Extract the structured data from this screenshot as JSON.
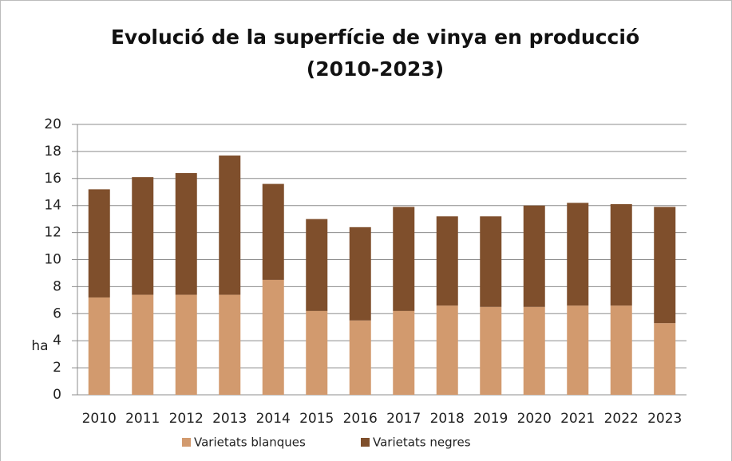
{
  "chart_data": {
    "type": "stacked_bar",
    "title": "Evolució de la superfície de vinya en producció",
    "subtitle": "(2010-2023)",
    "y_label": "ha",
    "categories": [
      "2010",
      "2011",
      "2012",
      "2013",
      "2014",
      "2015",
      "2016",
      "2017",
      "2018",
      "2019",
      "2020",
      "2021",
      "2022",
      "2023"
    ],
    "series": [
      {
        "name": "Varietats blanques",
        "color": "#d29a6e",
        "values": [
          7.2,
          7.4,
          7.4,
          7.4,
          8.5,
          6.2,
          5.5,
          6.2,
          6.6,
          6.5,
          6.5,
          6.6,
          6.6,
          5.3
        ]
      },
      {
        "name": "Varietats negres",
        "color": "#7f4f2c",
        "values": [
          8.0,
          8.7,
          9.0,
          10.3,
          7.1,
          6.8,
          6.9,
          7.7,
          6.6,
          6.7,
          7.5,
          7.6,
          7.5,
          8.6
        ]
      }
    ],
    "ylim": [
      0,
      20
    ],
    "yticks": [
      0,
      2,
      4,
      6,
      8,
      10,
      12,
      14,
      16,
      18,
      20
    ],
    "grid": true,
    "legend": "bottom"
  }
}
